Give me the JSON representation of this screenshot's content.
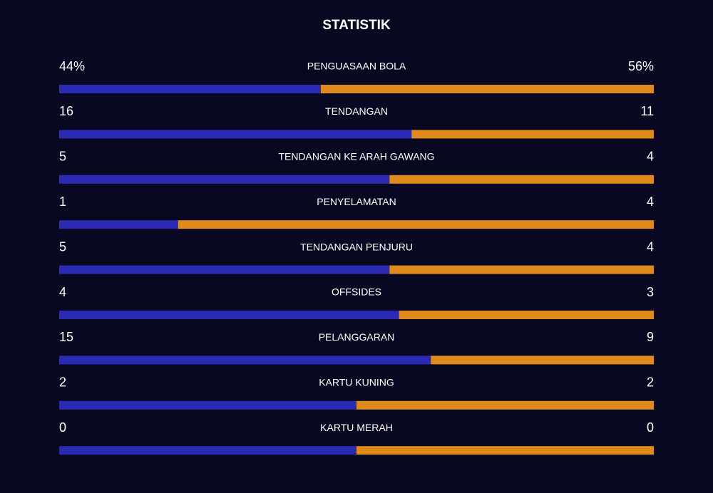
{
  "chart_data": {
    "type": "comparison-bar",
    "title": "STATISTIK",
    "categories": [
      "PENGUASAAN BOLA",
      "TENDANGAN",
      "TENDANGAN KE ARAH GAWANG",
      "PENYELAMATAN",
      "TENDANGAN PENJURU",
      "OFFSIDES",
      "PELANGGARAN",
      "KARTU KUNING",
      "KARTU MERAH"
    ],
    "series": [
      {
        "color": "#2a2ab5",
        "values": [
          44,
          16,
          5,
          1,
          5,
          4,
          15,
          2,
          0
        ],
        "value_labels": [
          "44%",
          "16",
          "5",
          "1",
          "5",
          "4",
          "15",
          "2",
          "0"
        ]
      },
      {
        "color": "#e08a1c",
        "values": [
          56,
          11,
          4,
          4,
          4,
          3,
          9,
          2,
          0
        ],
        "value_labels": [
          "56%",
          "11",
          "4",
          "4",
          "4",
          "3",
          "9",
          "2",
          "0"
        ]
      }
    ]
  }
}
